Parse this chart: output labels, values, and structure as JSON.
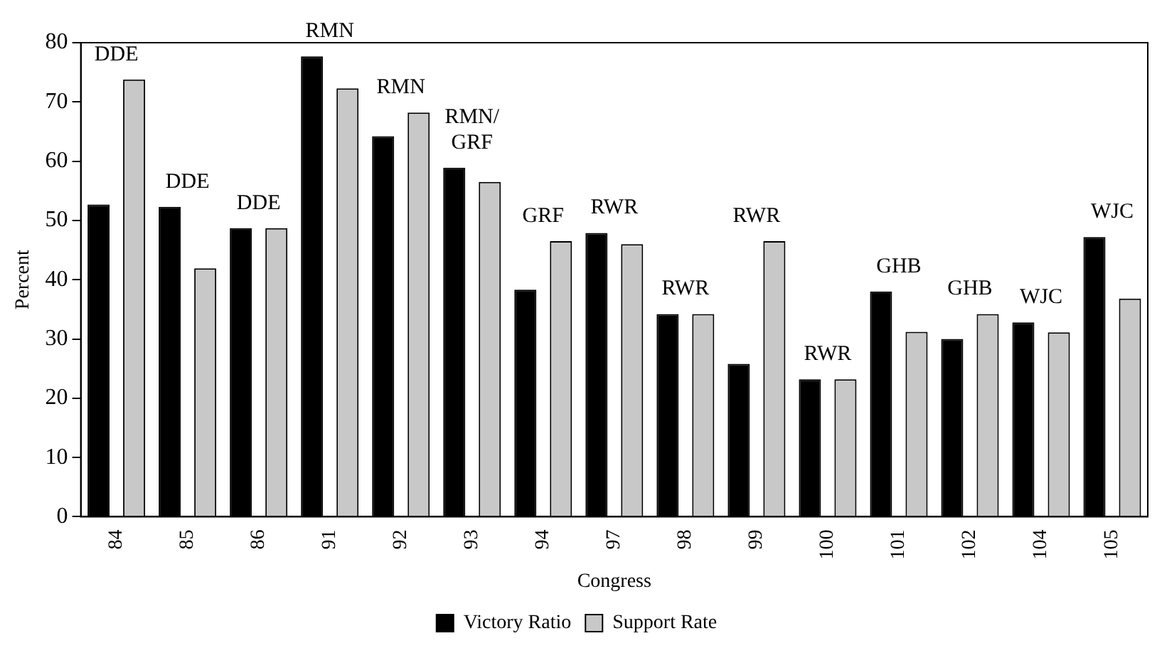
{
  "chart_data": {
    "type": "bar",
    "xlabel": "Congress",
    "ylabel": "Percent",
    "categories": [
      "84",
      "85",
      "86",
      "91",
      "92",
      "93",
      "94",
      "97",
      "98",
      "99",
      "100",
      "101",
      "102",
      "104",
      "105"
    ],
    "series": [
      {
        "name": "Victory Ratio",
        "color": "#000000",
        "values": [
          52.7,
          52.3,
          48.7,
          77.7,
          64.2,
          58.9,
          38.3,
          47.9,
          34.2,
          25.8,
          23.2,
          38,
          30,
          32.8,
          47.2
        ]
      },
      {
        "name": "Support Rate",
        "color": "#c8c8c8",
        "values": [
          73.8,
          41.9,
          48.7,
          72.3,
          68.2,
          56.5,
          46.5,
          46,
          34.2,
          46.5,
          23.2,
          31.2,
          34.2,
          31.1,
          36.8
        ]
      }
    ],
    "ylim": [
      0,
      80
    ],
    "yticks": [
      0,
      10,
      20,
      30,
      40,
      50,
      60,
      70,
      80
    ],
    "grid": false,
    "legend": "bottom",
    "annotations": [
      "DDE",
      "DDE",
      "DDE",
      "RMN",
      "RMN",
      "RMN/\nGRF",
      "GRF",
      "RWR",
      "RWR",
      "RWR",
      "RWR",
      "GHB",
      "GHB",
      "WJC",
      "WJC"
    ]
  }
}
